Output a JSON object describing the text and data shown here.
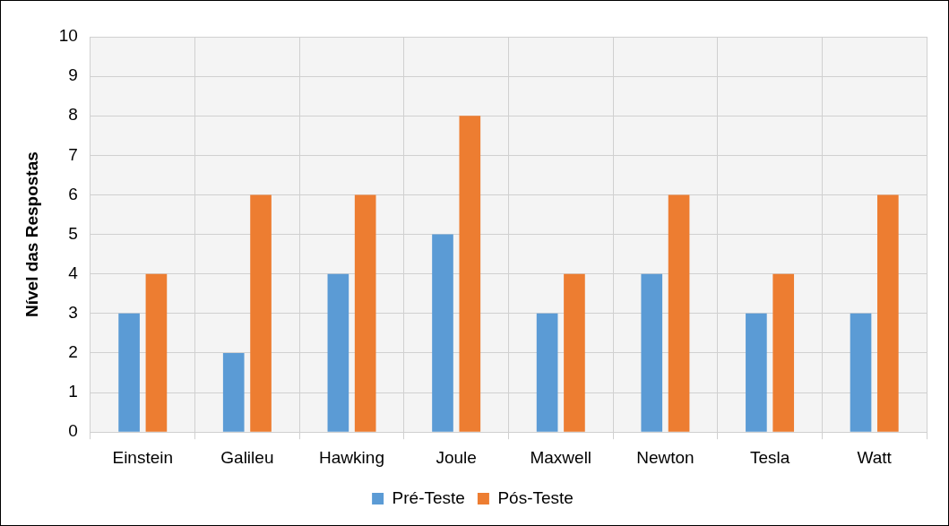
{
  "chart_data": {
    "type": "bar",
    "ylabel": "Nível das Respostas",
    "categories": [
      "Einstein",
      "Galileu",
      "Hawking",
      "Joule",
      "Maxwell",
      "Newton",
      "Tesla",
      "Watt"
    ],
    "series": [
      {
        "name": "Pré-Teste",
        "color": "#5b9bd5",
        "values": [
          3,
          2,
          4,
          5,
          3,
          4,
          3,
          3
        ]
      },
      {
        "name": "Pós-Teste",
        "color": "#ed7d31",
        "values": [
          4,
          6,
          6,
          8,
          4,
          6,
          4,
          6
        ]
      }
    ],
    "ylim": [
      0,
      10
    ],
    "yticks": [
      0,
      1,
      2,
      3,
      4,
      5,
      6,
      7,
      8,
      9,
      10
    ],
    "grid": true,
    "legend": "bottom"
  }
}
